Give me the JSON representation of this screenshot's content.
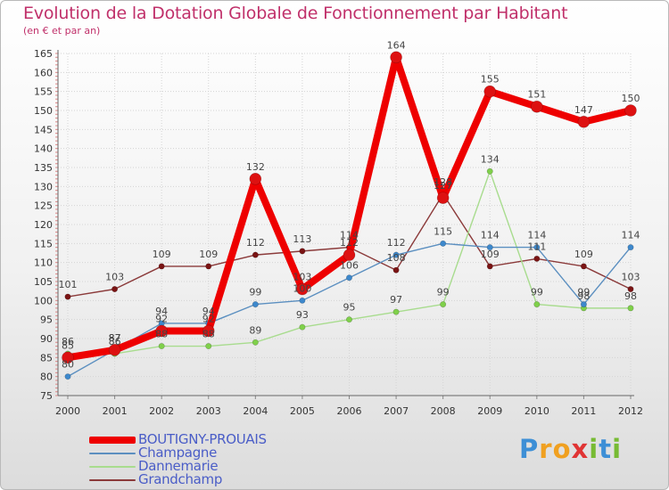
{
  "title": "Evolution de la Dotation Globale de Fonctionnement par Habitant",
  "subtitle": "(en € et par an)",
  "logo": {
    "letters": [
      {
        "char": "P",
        "color": "#3d8fd6"
      },
      {
        "char": "r",
        "color": "#f0a020"
      },
      {
        "char": "o",
        "color": "#f0a020"
      },
      {
        "char": "x",
        "color": "#e03434"
      },
      {
        "char": "i",
        "color": "#77bb33"
      },
      {
        "char": "t",
        "color": "#3d8fd6"
      },
      {
        "char": "i",
        "color": "#77bb33"
      }
    ]
  },
  "chart_data": {
    "type": "line",
    "title": "Evolution de la Dotation Globale de Fonctionnement par Habitant",
    "subtitle": "(en € et par an)",
    "xlabel": "",
    "ylabel": "",
    "x": [
      "2000",
      "2001",
      "2002",
      "2003",
      "2004",
      "2005",
      "2006",
      "2007",
      "2008",
      "2009",
      "2010",
      "2011",
      "2012"
    ],
    "ylim": [
      75,
      165
    ],
    "yticks": [
      75,
      80,
      85,
      90,
      95,
      100,
      105,
      110,
      115,
      120,
      125,
      130,
      135,
      140,
      145,
      150,
      155,
      160,
      165
    ],
    "grid": true,
    "legend": "bottom-left",
    "series": [
      {
        "name": "Grandchamp",
        "color": "#8b3a3a",
        "marker": "#7a1414",
        "values": [
          101,
          103,
          109,
          109,
          112,
          113,
          114,
          108,
          128,
          109,
          111,
          109,
          103
        ]
      },
      {
        "name": "Dannemarie",
        "color": "#a8dc8e",
        "marker": "#7fd04a",
        "values": [
          86,
          86,
          88,
          88,
          89,
          93,
          95,
          97,
          99,
          134,
          99,
          98,
          98
        ]
      },
      {
        "name": "Champagne",
        "color": "#5b8fc0",
        "marker": "#3d88cc",
        "values": [
          80,
          87,
          94,
          94,
          99,
          100,
          106,
          112,
          115,
          114,
          114,
          99,
          114
        ]
      },
      {
        "name": "BOUTIGNY-PROUAIS",
        "color": "#ee0000",
        "marker": "#dd1111",
        "values": [
          85,
          87,
          92,
          92,
          132,
          103,
          112,
          164,
          127,
          155,
          151,
          147,
          150
        ]
      }
    ],
    "legend_order": [
      "BOUTIGNY-PROUAIS",
      "Champagne",
      "Dannemarie",
      "Grandchamp"
    ]
  }
}
